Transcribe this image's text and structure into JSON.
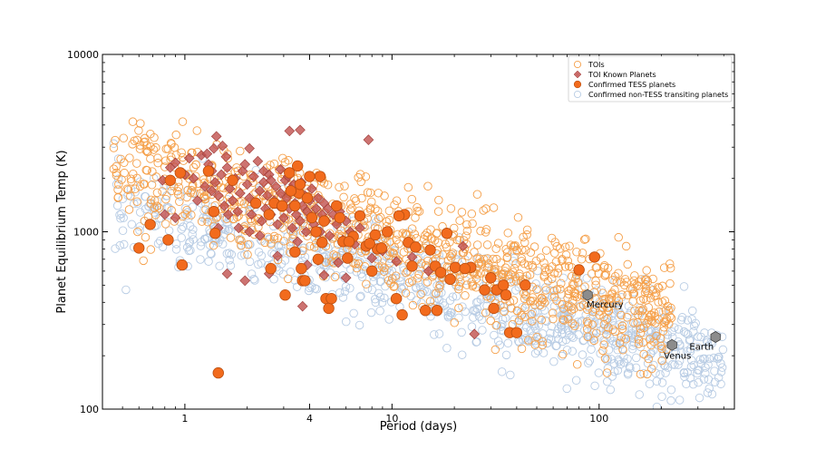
{
  "chart_data": {
    "type": "scatter",
    "title": "",
    "xlabel": "Period (days)",
    "ylabel": "Planet Equilibrium Temp (K)",
    "xscale": "log",
    "yscale": "log",
    "xlim": [
      0.4,
      450
    ],
    "ylim": [
      100,
      10000
    ],
    "xticks": [
      {
        "value": 1,
        "label": "1"
      },
      {
        "value": 4,
        "label": "4"
      },
      {
        "value": 10,
        "label": "10"
      },
      {
        "value": 100,
        "label": "100"
      }
    ],
    "yticks": [
      {
        "value": 100,
        "label": "100"
      },
      {
        "value": 1000,
        "label": "1000"
      },
      {
        "value": 10000,
        "label": "10000"
      }
    ],
    "legend_position": "top-right",
    "colors": {
      "toi": "#f5a04a",
      "known": "#c0504d",
      "confirmed_tess": "#f26b1d",
      "non_tess": "#b8cce4",
      "solar": "#8c8c8c"
    },
    "series": [
      {
        "name": "Confirmed non-TESS transiting planets",
        "marker": "open-circle",
        "generated": true,
        "count": 900,
        "description_note": "dense cloud extending to long periods",
        "trend": {
          "slope": -0.3,
          "intercept_logT": 3.04,
          "scatter": 0.13,
          "logP_range": [
            -0.35,
            2.6
          ]
        }
      },
      {
        "name": "TOIs",
        "marker": "open-circle",
        "generated": true,
        "count": 1000,
        "trend": {
          "slope": -0.33,
          "intercept_logT": 3.27,
          "scatter": 0.15,
          "logP_range": [
            -0.35,
            2.35
          ]
        }
      },
      {
        "name": "TOI Known Planets",
        "marker": "diamond",
        "points": [
          [
            0.85,
            2300
          ],
          [
            0.9,
            2450
          ],
          [
            1.0,
            2100
          ],
          [
            1.05,
            2600
          ],
          [
            1.1,
            2000
          ],
          [
            1.2,
            2700
          ],
          [
            1.25,
            1800
          ],
          [
            1.3,
            2400
          ],
          [
            1.35,
            2200
          ],
          [
            1.4,
            1900
          ],
          [
            1.45,
            1600
          ],
          [
            1.5,
            2100
          ],
          [
            1.55,
            1400
          ],
          [
            1.6,
            2300
          ],
          [
            1.65,
            1750
          ],
          [
            1.7,
            1500
          ],
          [
            1.75,
            2000
          ],
          [
            1.8,
            1300
          ],
          [
            1.85,
            1650
          ],
          [
            1.9,
            2200
          ],
          [
            2.0,
            1850
          ],
          [
            2.05,
            1550
          ],
          [
            2.1,
            1250
          ],
          [
            2.15,
            2050
          ],
          [
            2.2,
            1450
          ],
          [
            2.3,
            1700
          ],
          [
            2.35,
            1150
          ],
          [
            2.4,
            1900
          ],
          [
            2.45,
            1350
          ],
          [
            2.5,
            1600
          ],
          [
            2.55,
            2100
          ],
          [
            2.6,
            1250
          ],
          [
            2.7,
            1500
          ],
          [
            2.75,
            1800
          ],
          [
            2.8,
            1100
          ],
          [
            2.85,
            1400
          ],
          [
            2.9,
            1650
          ],
          [
            3.0,
            1200
          ],
          [
            3.05,
            1950
          ],
          [
            3.1,
            1550
          ],
          [
            3.2,
            1350
          ],
          [
            3.25,
            1750
          ],
          [
            3.3,
            1050
          ],
          [
            3.4,
            1450
          ],
          [
            3.45,
            1250
          ],
          [
            3.5,
            1650
          ],
          [
            3.6,
            1150
          ],
          [
            3.65,
            1900
          ],
          [
            3.7,
            1400
          ],
          [
            3.8,
            1600
          ],
          [
            3.85,
            1000
          ],
          [
            3.9,
            1300
          ],
          [
            4.0,
            1500
          ],
          [
            4.05,
            1200
          ],
          [
            4.1,
            1750
          ],
          [
            4.2,
            1100
          ],
          [
            4.3,
            1350
          ],
          [
            4.4,
            1550
          ],
          [
            4.5,
            1000
          ],
          [
            4.6,
            1250
          ],
          [
            4.7,
            1450
          ],
          [
            4.8,
            1150
          ],
          [
            4.9,
            1350
          ],
          [
            5.0,
            950
          ],
          [
            5.2,
            1250
          ],
          [
            5.4,
            1100
          ],
          [
            5.6,
            1300
          ],
          [
            5.8,
            900
          ],
          [
            6.0,
            1150
          ],
          [
            6.3,
            1000
          ],
          [
            6.6,
            850
          ],
          [
            7.0,
            1050
          ],
          [
            2.4,
            2200
          ],
          [
            2.6,
            1950
          ],
          [
            2.9,
            2250
          ],
          [
            3.15,
            2050
          ],
          [
            3.35,
            1850
          ],
          [
            1.95,
            2400
          ],
          [
            2.25,
            2500
          ],
          [
            1.58,
            2650
          ],
          [
            1.15,
            1500
          ],
          [
            1.35,
            1700
          ],
          [
            1.62,
            1250
          ],
          [
            1.82,
            1050
          ],
          [
            2.05,
            1000
          ],
          [
            2.3,
            950
          ],
          [
            0.78,
            1950
          ],
          [
            1.28,
            2750
          ],
          [
            1.38,
            2950
          ],
          [
            1.52,
            3050
          ],
          [
            1.42,
            3450
          ],
          [
            2.05,
            2950
          ],
          [
            3.2,
            3700
          ],
          [
            3.6,
            3750
          ],
          [
            7.7,
            3300
          ],
          [
            0.8,
            1250
          ],
          [
            0.9,
            1200
          ],
          [
            1.45,
            1050
          ],
          [
            1.6,
            580
          ],
          [
            1.95,
            530
          ],
          [
            2.55,
            580
          ],
          [
            2.8,
            730
          ],
          [
            3.5,
            880
          ],
          [
            4.7,
            570
          ],
          [
            6.0,
            550
          ],
          [
            3.7,
            380
          ],
          [
            25.0,
            265
          ],
          [
            12.5,
            720
          ],
          [
            22.0,
            830
          ],
          [
            15.0,
            600
          ],
          [
            10.5,
            680
          ],
          [
            9.0,
            780
          ],
          [
            5.5,
            670
          ],
          [
            3.9,
            650
          ],
          [
            4.4,
            690
          ],
          [
            8.0,
            710
          ]
        ]
      },
      {
        "name": "Confirmed TESS planets",
        "marker": "filled-circle",
        "points": [
          [
            0.95,
            2150
          ],
          [
            0.85,
            1950
          ],
          [
            0.68,
            1100
          ],
          [
            0.6,
            810
          ],
          [
            0.83,
            900
          ],
          [
            0.97,
            650
          ],
          [
            1.38,
            1300
          ],
          [
            1.4,
            980
          ],
          [
            1.45,
            160
          ],
          [
            1.3,
            2200
          ],
          [
            1.7,
            1950
          ],
          [
            2.2,
            1450
          ],
          [
            2.55,
            1250
          ],
          [
            2.7,
            1450
          ],
          [
            2.6,
            620
          ],
          [
            3.05,
            440
          ],
          [
            3.2,
            2150
          ],
          [
            3.4,
            1400
          ],
          [
            3.5,
            2350
          ],
          [
            3.55,
            1650
          ],
          [
            3.6,
            1850
          ],
          [
            3.4,
            770
          ],
          [
            3.65,
            620
          ],
          [
            3.7,
            530
          ],
          [
            3.8,
            530
          ],
          [
            3.9,
            1550
          ],
          [
            4.0,
            2050
          ],
          [
            4.1,
            1200
          ],
          [
            4.3,
            1000
          ],
          [
            4.4,
            700
          ],
          [
            4.5,
            2050
          ],
          [
            4.6,
            870
          ],
          [
            4.8,
            420
          ],
          [
            4.95,
            370
          ],
          [
            5.1,
            420
          ],
          [
            5.4,
            1400
          ],
          [
            5.6,
            1200
          ],
          [
            5.8,
            880
          ],
          [
            6.1,
            710
          ],
          [
            6.5,
            940
          ],
          [
            7.0,
            1230
          ],
          [
            7.5,
            830
          ],
          [
            8.0,
            600
          ],
          [
            8.5,
            800
          ],
          [
            8.9,
            810
          ],
          [
            9.5,
            1000
          ],
          [
            10.5,
            420
          ],
          [
            11.2,
            340
          ],
          [
            11.5,
            1250
          ],
          [
            12.0,
            870
          ],
          [
            12.5,
            640
          ],
          [
            14.5,
            360
          ],
          [
            15.3,
            790
          ],
          [
            16.2,
            640
          ],
          [
            16.5,
            360
          ],
          [
            17.2,
            590
          ],
          [
            18.4,
            980
          ],
          [
            19.1,
            540
          ],
          [
            20.2,
            630
          ],
          [
            24.0,
            630
          ],
          [
            30.0,
            550
          ],
          [
            31.0,
            370
          ],
          [
            32.0,
            470
          ],
          [
            34.5,
            500
          ],
          [
            35.5,
            440
          ],
          [
            37.0,
            270
          ],
          [
            40.0,
            270
          ],
          [
            44.0,
            500
          ],
          [
            80.0,
            610
          ],
          [
            95.0,
            720
          ],
          [
            7.8,
            860
          ],
          [
            10.8,
            1230
          ],
          [
            2.95,
            1400
          ],
          [
            3.25,
            1700
          ],
          [
            4.7,
            1150
          ],
          [
            6.2,
            880
          ],
          [
            8.3,
            960
          ],
          [
            13.0,
            820
          ],
          [
            22.5,
            620
          ],
          [
            28.0,
            470
          ]
        ]
      }
    ],
    "annotations": [
      {
        "text": "Mercury",
        "x": 88,
        "y": 440
      },
      {
        "text": "Venus",
        "x": 225,
        "y": 230
      },
      {
        "text": "Earth",
        "x": 365,
        "y": 255
      }
    ],
    "legend": [
      {
        "label": "TOIs",
        "marker": "open-circle",
        "color": "#f5a04a"
      },
      {
        "label": "TOI Known Planets",
        "marker": "diamond",
        "color": "#c0504d"
      },
      {
        "label": "Confirmed TESS planets",
        "marker": "filled-circle",
        "color": "#f26b1d"
      },
      {
        "label": "Confirmed non-TESS transiting planets",
        "marker": "open-circle",
        "color": "#b8cce4"
      }
    ]
  }
}
